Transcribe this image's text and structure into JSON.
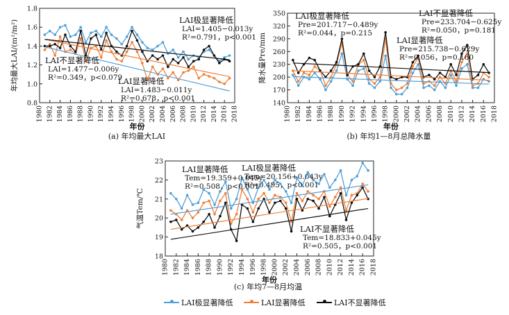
{
  "chart_data": [
    {
      "type": "line",
      "id": "a",
      "caption": "(a) 年均最大LAI",
      "ylabel": "年均最大LAI/(m²/m²)",
      "xlabel": "年份",
      "ylim": [
        0.8,
        1.8
      ],
      "yticks": [
        "0.8",
        "1.0",
        "1.2",
        "1.4",
        "1.6",
        "1.8"
      ],
      "xlim": [
        1980,
        2018
      ],
      "xticks": [
        "1980",
        "1982",
        "1984",
        "1986",
        "1988",
        "1990",
        "1992",
        "1994",
        "1996",
        "1998",
        "2000",
        "2002",
        "2004",
        "2006",
        "2008",
        "2010",
        "2012",
        "2014",
        "2016",
        "2018"
      ],
      "x": [
        1981,
        1982,
        1983,
        1984,
        1985,
        1986,
        1987,
        1988,
        1989,
        1990,
        1991,
        1992,
        1993,
        1994,
        1995,
        1996,
        1997,
        1998,
        1999,
        2000,
        2001,
        2002,
        2003,
        2004,
        2005,
        2006,
        2007,
        2008,
        2009,
        2010,
        2011,
        2012,
        2013,
        2014,
        2015,
        2016,
        2017
      ],
      "series": [
        {
          "name": "LAI极显著降低",
          "color": "#4f9fd8",
          "values": [
            1.52,
            1.56,
            1.52,
            1.6,
            1.62,
            1.5,
            1.52,
            1.6,
            1.44,
            1.54,
            1.56,
            1.5,
            1.6,
            1.52,
            1.48,
            1.42,
            1.5,
            1.6,
            1.52,
            1.44,
            1.38,
            1.36,
            1.4,
            1.44,
            1.32,
            1.36,
            1.28,
            1.34,
            1.26,
            1.3,
            1.28,
            1.34,
            1.36,
            1.3,
            1.24,
            1.28,
            1.3
          ]
        },
        {
          "name": "LAI显著降低",
          "color": "#ef7f37",
          "values": [
            1.36,
            1.42,
            1.3,
            1.5,
            1.34,
            1.36,
            1.32,
            1.48,
            1.24,
            1.38,
            1.4,
            1.28,
            1.46,
            1.34,
            1.26,
            1.24,
            1.34,
            1.44,
            1.34,
            1.22,
            1.04,
            1.18,
            1.1,
            1.16,
            1.06,
            1.12,
            1.04,
            1.12,
            1.14,
            1.18,
            1.06,
            1.1,
            1.08,
            1.06,
            1.02,
            1.0,
            1.06
          ]
        },
        {
          "name": "LAI不显著降低",
          "color": "#111111",
          "values": [
            1.4,
            1.4,
            1.42,
            1.38,
            1.52,
            1.4,
            1.34,
            1.56,
            1.3,
            1.48,
            1.52,
            1.36,
            1.54,
            1.4,
            1.34,
            1.3,
            1.4,
            1.56,
            1.46,
            1.34,
            1.24,
            1.3,
            1.26,
            1.3,
            1.18,
            1.26,
            1.22,
            1.28,
            1.18,
            1.24,
            1.26,
            1.36,
            1.4,
            1.3,
            1.22,
            1.26,
            1.24
          ]
        }
      ],
      "trends": [
        {
          "series": "LAI极显著降低",
          "intercept": 1.405,
          "slope": -0.013
        },
        {
          "series": "LAI显著降低",
          "intercept": 1.483,
          "slope": -0.011
        },
        {
          "series": "LAI不显著降低",
          "intercept": 1.477,
          "slope": -0.006
        }
      ],
      "annotations": [
        {
          "title": "LAI极显著降低",
          "eq": "LAI=1.405−0.013y",
          "stats": "R²=0.791，p<0.001"
        },
        {
          "title": "LAI不显著降低",
          "eq": "LAI=1.477−0.006y",
          "stats": "R²=0.349，p<0.079"
        },
        {
          "title": "LAI显著降低",
          "eq": "LAI=1.483−0.011y",
          "stats": "R²=0.678，p<0.001"
        }
      ]
    },
    {
      "type": "line",
      "id": "b",
      "caption": "(b) 年均1—8月总降水量",
      "ylabel": "降水量Pre/mm",
      "xlabel": "年份",
      "ylim": [
        140,
        350
      ],
      "yticks": [
        "140",
        "170",
        "200",
        "230",
        "260",
        "290",
        "320",
        "350"
      ],
      "xlim": [
        1980,
        2018
      ],
      "xticks": [
        "1980",
        "1982",
        "1984",
        "1986",
        "1988",
        "1990",
        "1992",
        "1994",
        "1996",
        "1998",
        "2000",
        "2002",
        "2004",
        "2006",
        "2008",
        "2010",
        "2012",
        "2014",
        "2016",
        "2018"
      ],
      "x": [
        1981,
        1982,
        1983,
        1984,
        1985,
        1986,
        1987,
        1988,
        1989,
        1990,
        1991,
        1992,
        1993,
        1994,
        1995,
        1996,
        1997,
        1998,
        1999,
        2000,
        2001,
        2002,
        2003,
        2004,
        2005,
        2006,
        2007,
        2008,
        2009,
        2010,
        2011,
        2012,
        2013,
        2014,
        2015,
        2016,
        2017
      ],
      "series": [
        {
          "name": "LAI极显著降低",
          "color": "#4f9fd8",
          "values": [
            205,
            180,
            200,
            195,
            210,
            195,
            170,
            190,
            215,
            255,
            195,
            180,
            215,
            220,
            185,
            175,
            190,
            250,
            175,
            160,
            160,
            175,
            210,
            230,
            175,
            180,
            170,
            190,
            175,
            205,
            180,
            220,
            230,
            175,
            175,
            195,
            190
          ]
        },
        {
          "name": "LAI显著降低",
          "color": "#ef7f37",
          "values": [
            215,
            190,
            210,
            205,
            225,
            215,
            180,
            200,
            230,
            280,
            205,
            190,
            230,
            240,
            195,
            185,
            200,
            290,
            185,
            170,
            175,
            185,
            225,
            245,
            185,
            190,
            180,
            200,
            185,
            215,
            190,
            235,
            255,
            180,
            185,
            210,
            200
          ]
        },
        {
          "name": "LAI不显著降低",
          "color": "#111111",
          "values": [
            240,
            210,
            230,
            245,
            240,
            215,
            200,
            215,
            235,
            290,
            205,
            225,
            230,
            255,
            215,
            200,
            225,
            305,
            200,
            195,
            200,
            200,
            235,
            250,
            200,
            205,
            195,
            210,
            200,
            230,
            205,
            255,
            275,
            195,
            205,
            230,
            210
          ]
        }
      ],
      "trends": [
        {
          "series": "LAI极显著降低",
          "intercept": 201.717,
          "slope": -0.489
        },
        {
          "series": "LAI显著降低",
          "intercept": 215.738,
          "slope": -0.629
        },
        {
          "series": "LAI不显著降低",
          "intercept": 233.704,
          "slope": -0.625
        }
      ],
      "annotations": [
        {
          "title": "LAI极显著降低",
          "eq": "Pre=201.717−0.489y",
          "stats": "R²=0.044，p=0.215"
        },
        {
          "title": "LAI不显著降低",
          "eq": "Pre=233.704−0.625y",
          "stats": "R²=0.050，p=0.181"
        },
        {
          "title": "LAI显著降低",
          "eq": "Pre=215.738−0.629y",
          "stats": "R²=0.056，p=0.160"
        }
      ]
    },
    {
      "type": "line",
      "id": "c",
      "caption": "(c) 年均7—8月均温",
      "ylabel": "气温Tem/℃",
      "xlabel": "年份",
      "ylim": [
        18,
        23
      ],
      "yticks": [
        "18",
        "19",
        "20",
        "21",
        "22",
        "23"
      ],
      "xlim": [
        1980,
        2018
      ],
      "xticks": [
        "1980",
        "1982",
        "1984",
        "1986",
        "1988",
        "1990",
        "1992",
        "1994",
        "1996",
        "1998",
        "2000",
        "2002",
        "2004",
        "2006",
        "2008",
        "2010",
        "2012",
        "2014",
        "2016",
        "2018"
      ],
      "x": [
        1981,
        1982,
        1983,
        1984,
        1985,
        1986,
        1987,
        1988,
        1989,
        1990,
        1991,
        1992,
        1993,
        1994,
        1995,
        1996,
        1997,
        1998,
        1999,
        2000,
        2001,
        2002,
        2003,
        2004,
        2005,
        2006,
        2007,
        2008,
        2009,
        2010,
        2011,
        2012,
        2013,
        2014,
        2015,
        2016,
        2017
      ],
      "series": [
        {
          "name": "LAI极显著降低",
          "color": "#4f9fd8",
          "values": [
            21.3,
            21.0,
            20.5,
            21.2,
            20.7,
            20.8,
            21.5,
            21.3,
            20.7,
            21.4,
            21.9,
            20.5,
            21.0,
            22.1,
            21.5,
            20.8,
            21.6,
            22.0,
            21.5,
            22.0,
            21.8,
            21.4,
            20.8,
            22.1,
            21.7,
            22.4,
            22.0,
            21.8,
            22.3,
            21.6,
            22.0,
            22.5,
            21.2,
            22.0,
            22.2,
            22.9,
            22.5
          ]
        },
        {
          "name": "LAI显著降低",
          "color": "#ef7f37",
          "values": [
            20.4,
            20.2,
            19.9,
            20.4,
            20.0,
            20.3,
            20.8,
            20.9,
            20.2,
            20.9,
            21.3,
            19.7,
            20.2,
            21.5,
            21.0,
            20.3,
            21.0,
            21.3,
            20.8,
            21.2,
            21.1,
            20.8,
            19.8,
            21.3,
            20.9,
            21.4,
            21.2,
            21.0,
            21.4,
            20.6,
            21.1,
            21.6,
            20.4,
            21.2,
            21.3,
            21.8,
            21.4
          ]
        },
        {
          "name": "LAI不显著降低",
          "color": "#111111",
          "values": [
            19.8,
            19.9,
            19.4,
            19.6,
            19.3,
            19.5,
            19.8,
            20.2,
            19.5,
            20.1,
            20.8,
            19.4,
            18.8,
            20.7,
            20.5,
            19.8,
            20.5,
            21.0,
            20.3,
            20.8,
            20.9,
            20.5,
            19.3,
            21.0,
            20.4,
            21.0,
            20.9,
            20.5,
            21.1,
            20.1,
            20.7,
            21.3,
            19.9,
            20.8,
            21.2,
            21.6,
            21.0
          ]
        }
      ],
      "trends": [
        {
          "series": "LAI极显著降低",
          "intercept": 20.156,
          "slope": 0.043
        },
        {
          "series": "LAI显著降低",
          "intercept": 19.359,
          "slope": 0.045
        },
        {
          "series": "LAI不显著降低",
          "intercept": 18.833,
          "slope": 0.045
        }
      ],
      "annotations": [
        {
          "title": "LAI显著降低",
          "eq": "Tem=19.359+0.045y",
          "stats": "R²=0.508，p<0.001"
        },
        {
          "title": "LAI极显著降低",
          "eq": "Tem=20.156+0.043y",
          "stats": "R²=0.495，p<0.001"
        },
        {
          "title": "LAI不显著降低",
          "eq": "Tem=18.833+0.045y",
          "stats": "R²=0.505，p<0.001"
        }
      ]
    }
  ],
  "legend": [
    {
      "label": "LAI极显著降低",
      "color": "#4f9fd8"
    },
    {
      "label": "LAI显著降低",
      "color": "#ef7f37"
    },
    {
      "label": "LAI不显著降低",
      "color": "#111111"
    }
  ]
}
